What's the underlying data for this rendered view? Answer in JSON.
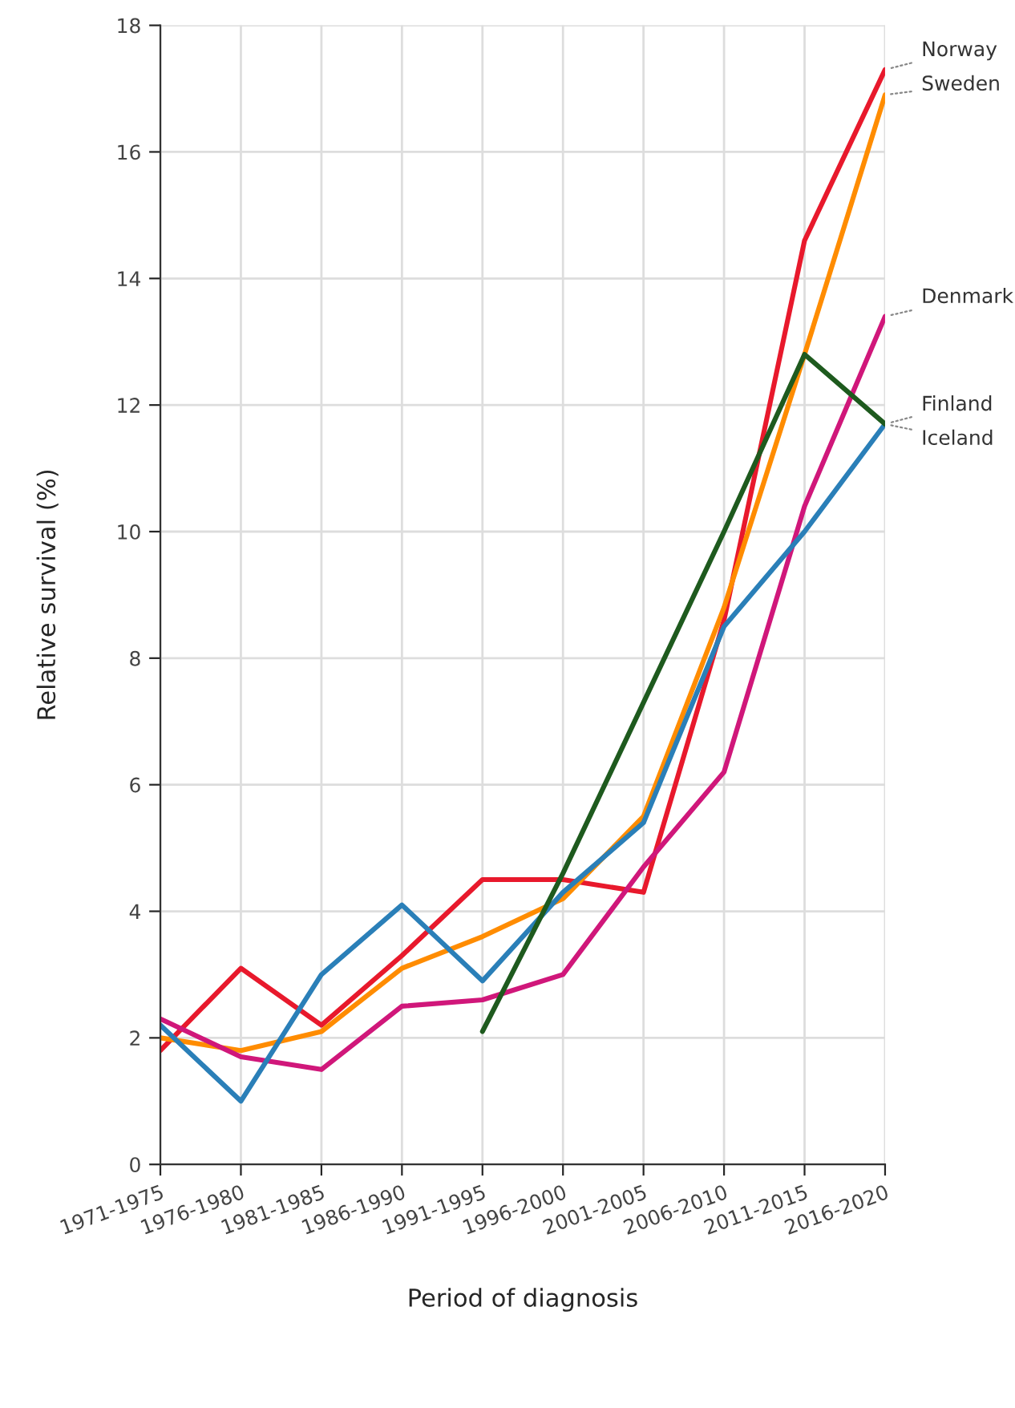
{
  "chart_data": {
    "type": "line",
    "xlabel": "Period of diagnosis",
    "ylabel": "Relative survival (%)",
    "categories": [
      "1971-1975",
      "1976-1980",
      "1981-1985",
      "1986-1990",
      "1991-1995",
      "1996-2000",
      "2001-2005",
      "2006-2010",
      "2011-2015",
      "2016-2020"
    ],
    "series": [
      {
        "name": "Norway",
        "color": "#e8192c",
        "values": [
          1.8,
          3.1,
          2.2,
          3.3,
          4.5,
          4.5,
          4.3,
          8.6,
          14.6,
          17.3
        ]
      },
      {
        "name": "Sweden",
        "color": "#ff8c00",
        "values": [
          2.0,
          1.8,
          2.1,
          3.1,
          3.6,
          4.2,
          5.5,
          8.8,
          12.8,
          16.9
        ]
      },
      {
        "name": "Denmark",
        "color": "#d0177a",
        "values": [
          2.3,
          1.7,
          1.5,
          2.5,
          2.6,
          3.0,
          4.7,
          6.2,
          10.4,
          13.4
        ]
      },
      {
        "name": "Finland",
        "color": "#2a7fb8",
        "values": [
          2.2,
          1.0,
          3.0,
          4.1,
          2.9,
          4.3,
          5.4,
          8.5,
          10.0,
          11.7
        ]
      },
      {
        "name": "Iceland",
        "color": "#1e5a1e",
        "values": [
          null,
          null,
          null,
          null,
          2.1,
          4.6,
          7.3,
          10.0,
          12.8,
          11.7
        ]
      }
    ],
    "ylim": [
      0,
      18
    ],
    "yticks": [
      0,
      2,
      4,
      6,
      8,
      10,
      12,
      14,
      16,
      18
    ],
    "grid": true,
    "legend": false,
    "marker": "none",
    "line_style": "solid"
  }
}
